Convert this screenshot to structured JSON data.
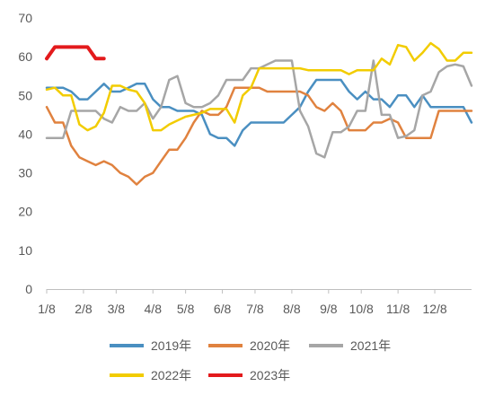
{
  "chart_data": {
    "type": "line",
    "title": "",
    "xlabel": "",
    "ylabel": "",
    "ylim": [
      0,
      70
    ],
    "yticks": [
      0,
      10,
      20,
      30,
      40,
      50,
      60,
      70
    ],
    "xlim": [
      1,
      53
    ],
    "grid": false,
    "legend": "bottom",
    "x_tick_labels": [
      "1/8",
      "2/8",
      "3/8",
      "4/8",
      "5/8",
      "6/8",
      "7/8",
      "8/8",
      "9/8",
      "10/8",
      "11/8",
      "12/8"
    ],
    "x_tick_weeks": [
      1,
      5.5,
      9.5,
      14,
      18,
      22.5,
      26.5,
      31,
      35.5,
      39.5,
      44,
      48.5
    ],
    "x_unit": "week",
    "series": [
      {
        "name": "2019年",
        "color": "#4a8fc1",
        "x": [
          1,
          2,
          3,
          4,
          5,
          6,
          7,
          8,
          9,
          10,
          11,
          12,
          13,
          14,
          15,
          16,
          17,
          18,
          19,
          20,
          21,
          22,
          23,
          24,
          25,
          26,
          27,
          28,
          29,
          30,
          31,
          32,
          33,
          34,
          35,
          36,
          37,
          38,
          39,
          40,
          41,
          42,
          43,
          44,
          45,
          46,
          47,
          48,
          49,
          50,
          51,
          52,
          53
        ],
        "values": [
          52,
          52,
          52,
          51,
          49,
          49,
          51,
          53,
          51,
          51,
          52,
          53,
          53,
          49,
          47,
          47,
          46,
          46,
          46,
          45,
          40,
          39,
          39,
          37,
          41,
          43,
          43,
          43,
          43,
          43,
          45,
          47,
          51,
          54,
          54,
          54,
          54,
          51,
          49,
          51,
          49,
          49,
          47,
          50,
          50,
          47,
          50,
          47,
          47,
          47,
          47,
          47,
          43
        ]
      },
      {
        "name": "2020年",
        "color": "#e0823f",
        "x": [
          1,
          2,
          3,
          4,
          5,
          6,
          7,
          8,
          9,
          10,
          11,
          12,
          13,
          14,
          15,
          16,
          17,
          18,
          19,
          20,
          21,
          22,
          23,
          24,
          25,
          26,
          27,
          28,
          29,
          30,
          31,
          32,
          33,
          34,
          35,
          36,
          37,
          38,
          39,
          40,
          41,
          42,
          43,
          44,
          45,
          46,
          47,
          48,
          49,
          50,
          51,
          52,
          53
        ],
        "values": [
          47,
          43,
          43,
          37,
          34,
          33,
          32,
          33,
          32,
          30,
          29,
          27,
          29,
          30,
          33,
          36,
          36,
          39,
          43,
          46,
          45,
          45,
          47,
          52,
          52,
          52,
          52,
          51,
          51,
          51,
          51,
          51,
          50,
          47,
          46,
          48,
          46,
          41,
          41,
          41,
          43,
          43,
          44,
          43,
          39,
          39,
          39,
          39,
          46,
          46,
          46,
          46,
          46
        ]
      },
      {
        "name": "2021年",
        "color": "#a6a6a6",
        "x": [
          1,
          2,
          3,
          4,
          5,
          6,
          7,
          8,
          9,
          10,
          11,
          12,
          13,
          14,
          15,
          16,
          17,
          18,
          19,
          20,
          21,
          22,
          23,
          24,
          25,
          26,
          27,
          28,
          29,
          30,
          31,
          32,
          33,
          34,
          35,
          36,
          37,
          38,
          39,
          40,
          41,
          42,
          43,
          44,
          45,
          46,
          47,
          48,
          49,
          50,
          51,
          52,
          53
        ],
        "values": [
          39,
          39,
          39,
          46,
          46,
          46,
          46,
          44,
          43,
          47,
          46,
          46,
          48,
          44,
          47,
          54,
          55,
          48,
          47,
          47,
          48,
          50,
          54,
          54,
          54,
          57,
          57,
          58,
          59,
          59,
          59,
          46,
          42,
          35,
          34,
          40.5,
          40.5,
          42,
          46,
          46,
          59,
          45,
          45,
          39,
          39.5,
          41,
          50,
          51,
          56,
          57.5,
          58,
          57.5,
          52.5
        ]
      },
      {
        "name": "2022年",
        "color": "#f2cc00",
        "x": [
          1,
          2,
          3,
          4,
          5,
          6,
          7,
          8,
          9,
          10,
          11,
          12,
          13,
          14,
          15,
          16,
          17,
          18,
          19,
          20,
          21,
          22,
          23,
          24,
          25,
          26,
          27,
          28,
          29,
          30,
          31,
          32,
          33,
          34,
          35,
          36,
          37,
          38,
          39,
          40,
          41,
          42,
          43,
          44,
          45,
          46,
          47,
          48,
          49,
          50,
          51,
          52,
          53
        ],
        "values": [
          51.5,
          52,
          50,
          50,
          42.5,
          41,
          42,
          45.5,
          52.5,
          52.5,
          51.5,
          51,
          48,
          41,
          41,
          42.5,
          43.5,
          44.5,
          45,
          45.5,
          46.5,
          46.5,
          46.5,
          43,
          50,
          52,
          57,
          57,
          57,
          57,
          57,
          57,
          56.5,
          56.5,
          56.5,
          56.5,
          56.5,
          55.5,
          56.5,
          56.5,
          56.5,
          59.5,
          58,
          63,
          62.5,
          59,
          61,
          63.5,
          62,
          59,
          59,
          61,
          61
        ]
      },
      {
        "name": "2023年",
        "color": "#e31a1c",
        "x": [
          1,
          2,
          3,
          4,
          5,
          6,
          7,
          8
        ],
        "values": [
          59.5,
          62.5,
          62.5,
          62.5,
          62.5,
          62.5,
          59.5,
          59.5
        ]
      }
    ]
  }
}
